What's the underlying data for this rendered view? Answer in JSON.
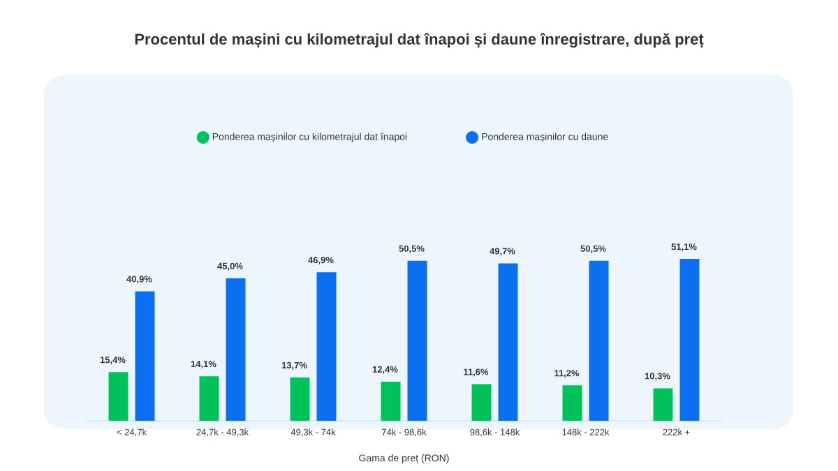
{
  "chart_data": {
    "type": "bar",
    "title": "Procentul de mașini cu kilometrajul dat înapoi și daune înregistrare, după preț",
    "xlabel": "Gama de preț (RON)",
    "legend": "top",
    "categories": [
      "< 24,7k",
      "24,7k - 49,3k",
      "49,3k - 74k",
      "74k - 98,6k",
      "98,6k - 148k",
      "148k - 222k",
      "222k +"
    ],
    "tick_labels": "x",
    "series": [
      {
        "name": "Ponderea mașinilor cu kilometrajul dat înapoi",
        "color": "#00c15a",
        "values": [
          15.4,
          14.1,
          13.7,
          12.4,
          11.6,
          11.2,
          10.3
        ],
        "value_labels": [
          "15,4%",
          "14,1%",
          "13,7%",
          "12,4%",
          "11,6%",
          "11,2%",
          "10,3%"
        ]
      },
      {
        "name": "Ponderea mașinilor cu daune",
        "color": "#0a6ff0",
        "values": [
          40.9,
          45.0,
          46.9,
          50.5,
          49.7,
          50.5,
          51.1
        ],
        "value_labels": [
          "40,9%",
          "45,0%",
          "46,9%",
          "50,5%",
          "49,7%",
          "50,5%",
          "51,1%"
        ]
      }
    ]
  }
}
